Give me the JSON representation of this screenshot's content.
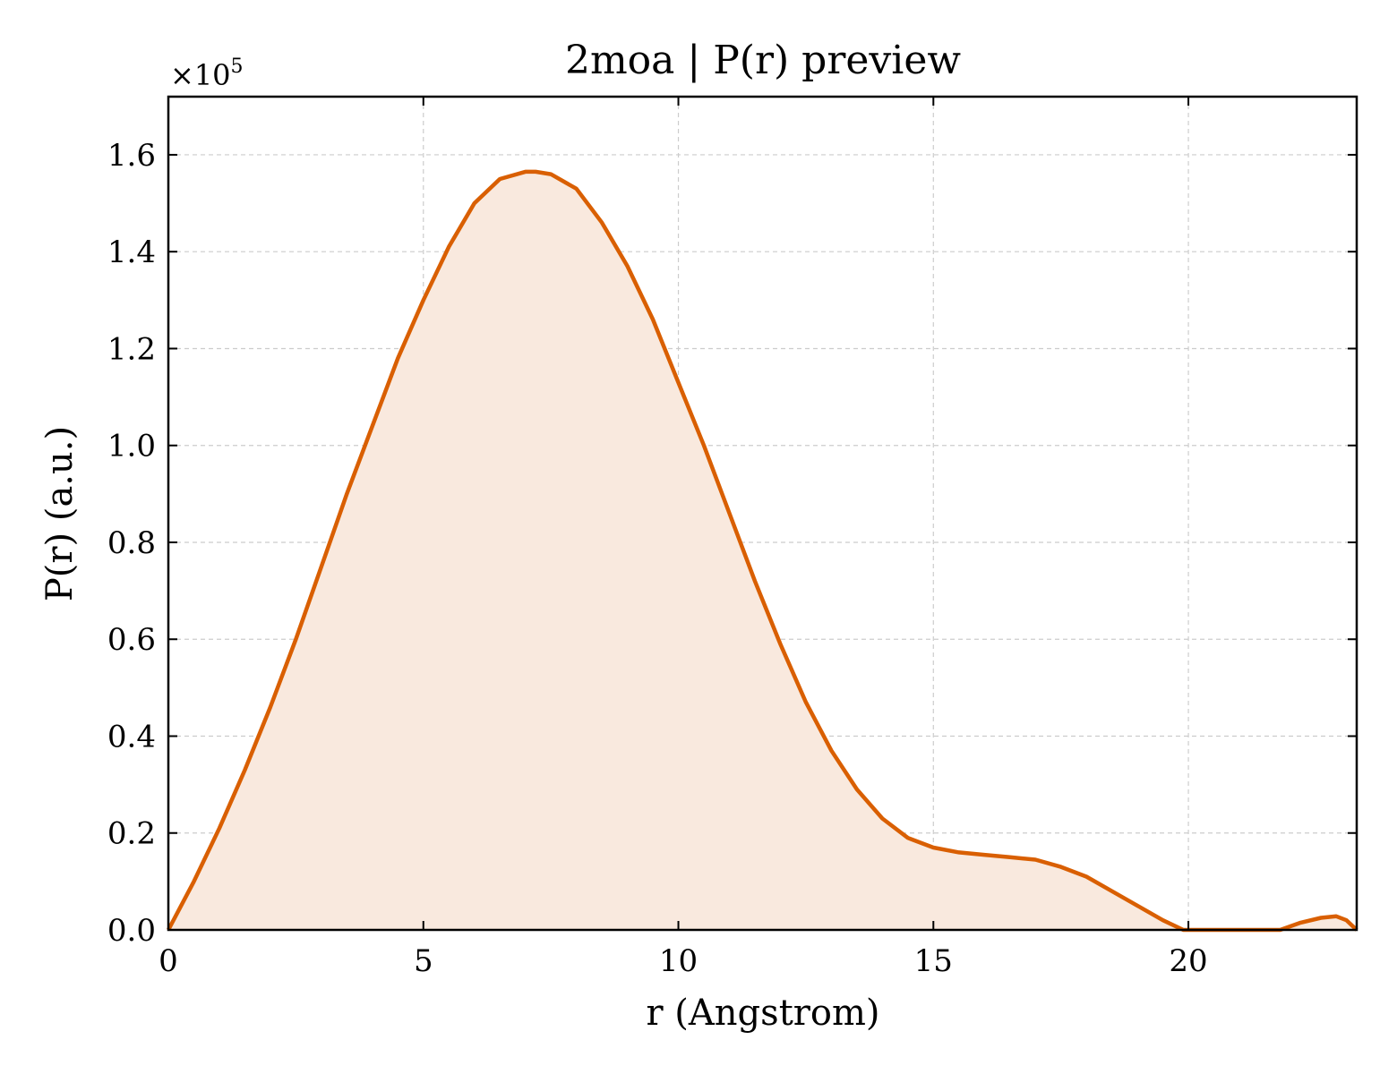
{
  "chart_data": {
    "type": "area",
    "title": "2moa | P(r) preview",
    "xlabel": "r (Angstrom)",
    "ylabel": "P(r) (a.u.)",
    "y_multiplier_label": "×10",
    "y_multiplier_exponent": "5",
    "xlim": [
      0,
      23.3
    ],
    "ylim": [
      0,
      1.72
    ],
    "xticks": [
      0,
      5,
      10,
      15,
      20
    ],
    "yticks": [
      0.0,
      0.2,
      0.4,
      0.6,
      0.8,
      1.0,
      1.2,
      1.4,
      1.6
    ],
    "ytick_labels": [
      "0.0",
      "0.2",
      "0.4",
      "0.6",
      "0.8",
      "1.0",
      "1.2",
      "1.4",
      "1.6"
    ],
    "grid": true,
    "colors": {
      "line": "#d95f02",
      "fill": "#f9e9de"
    },
    "series": [
      {
        "x": [
          0,
          0.5,
          1.0,
          1.5,
          2.0,
          2.5,
          3.0,
          3.5,
          4.0,
          4.5,
          5.0,
          5.5,
          6.0,
          6.5,
          7.0,
          7.2,
          7.5,
          8.0,
          8.5,
          9.0,
          9.5,
          10.0,
          10.5,
          11.0,
          11.5,
          12.0,
          12.5,
          13.0,
          13.5,
          14.0,
          14.5,
          15.0,
          15.5,
          16.0,
          16.5,
          17.0,
          17.5,
          18.0,
          18.5,
          19.0,
          19.5,
          19.9,
          20.5,
          21.0,
          21.5,
          21.8,
          22.2,
          22.6,
          22.9,
          23.1,
          23.3
        ],
        "y": [
          0.0,
          0.1,
          0.21,
          0.33,
          0.46,
          0.6,
          0.75,
          0.9,
          1.04,
          1.18,
          1.3,
          1.41,
          1.5,
          1.55,
          1.565,
          1.565,
          1.56,
          1.53,
          1.46,
          1.37,
          1.26,
          1.13,
          1.0,
          0.86,
          0.72,
          0.59,
          0.47,
          0.37,
          0.29,
          0.23,
          0.19,
          0.17,
          0.16,
          0.155,
          0.15,
          0.145,
          0.13,
          0.11,
          0.08,
          0.05,
          0.02,
          0.0,
          0.0,
          0.0,
          0.0,
          0.0,
          0.015,
          0.025,
          0.028,
          0.02,
          0.0
        ]
      }
    ]
  }
}
